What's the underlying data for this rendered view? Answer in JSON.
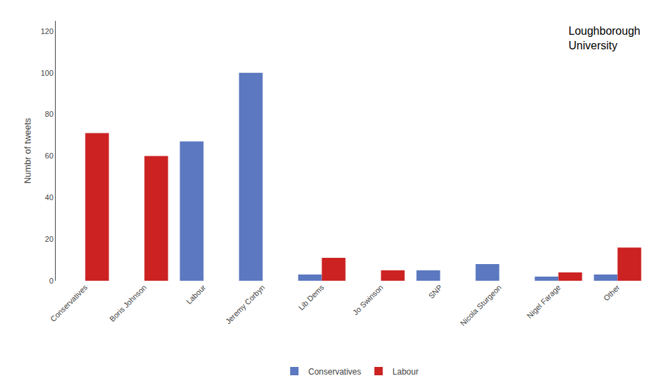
{
  "chart_data": {
    "type": "bar",
    "categories": [
      "Conservatives",
      "Boris Johnson",
      "Labour",
      "Jeremy Corbyn",
      "Lib Dems",
      "Jo Swinson",
      "SNP",
      "Nicola Sturgeon",
      "Nigel Farage",
      "Other"
    ],
    "series": [
      {
        "name": "Conservatives",
        "color": "#5B78C0",
        "values": [
          0,
          0,
          67,
          100,
          3,
          0,
          5,
          8,
          2,
          3
        ]
      },
      {
        "name": "Labour",
        "color": "#CC2222",
        "values": [
          71,
          60,
          0,
          0,
          11,
          5,
          0,
          0,
          4,
          16
        ]
      }
    ],
    "ylabel": "Numbr of tweets",
    "ylim": [
      0,
      125
    ],
    "yticks": [
      0,
      20,
      40,
      60,
      80,
      100,
      120
    ],
    "grid": false,
    "legend": "bottom",
    "annotations": [
      "Loughborough\nUniversity"
    ]
  }
}
